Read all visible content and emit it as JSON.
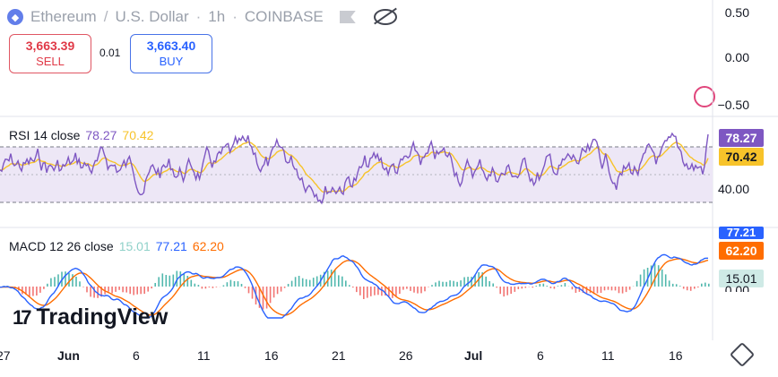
{
  "header": {
    "pair": "Ethereum",
    "quote": "U.S. Dollar",
    "interval": "1h",
    "exchange": "COINBASE",
    "separator": "·",
    "slash": "/"
  },
  "trade": {
    "sell_price": "3,663.39",
    "sell_label": "SELL",
    "spread": "0.01",
    "buy_price": "3,663.40",
    "buy_label": "BUY"
  },
  "price_axis": [
    "0.50",
    "0.00",
    "−0.50"
  ],
  "rsi": {
    "title": "RSI 14 close",
    "value": "78.27",
    "ma_value": "70.42",
    "axis_label": "40.00",
    "tag_value": "78.27",
    "tag_ma": "70.42"
  },
  "macd": {
    "title": "MACD 12 26 close",
    "hist": "15.01",
    "macd": "77.21",
    "signal": "62.20",
    "tag_macd": "77.21",
    "tag_signal": "62.20",
    "tag_hist": "15.01",
    "axis_zero": "0.00"
  },
  "x_axis": [
    "27",
    "Jun",
    "6",
    "11",
    "16",
    "21",
    "26",
    "Jul",
    "6",
    "11",
    "16"
  ],
  "brand": "TradingView",
  "brand_mark": "17",
  "colors": {
    "rsi": "#7e57c2",
    "rsi_ma": "#f7c32a",
    "macd": "#2962ff",
    "signal": "#ff6d00",
    "hist_pos": "#26a69a",
    "hist_neg": "#ef5350",
    "band": "#ede7f6"
  },
  "icons": [
    "ethereum-icon",
    "flag-icon",
    "eye-off-icon",
    "settings-icon",
    "dollar-badge-icon"
  ]
}
